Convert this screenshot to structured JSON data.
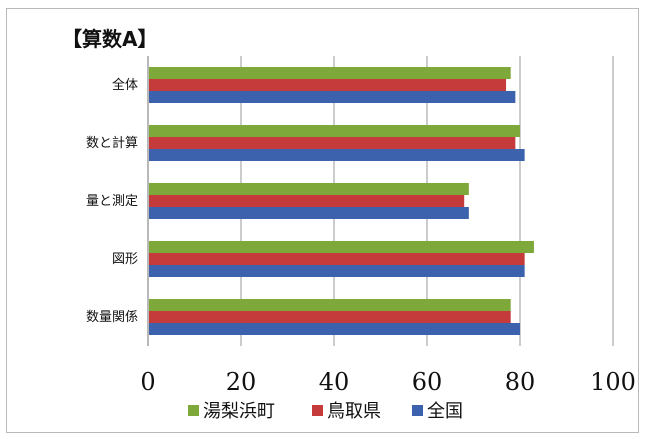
{
  "chart_data": {
    "type": "bar",
    "orientation": "horizontal",
    "title": "【算数A】",
    "categories": [
      "全体",
      "数と計算",
      "量と測定",
      "図形",
      "数量関係"
    ],
    "series": [
      {
        "name": "湯梨浜町",
        "color": "#7fa83a",
        "values": [
          78,
          80,
          69,
          83,
          78
        ]
      },
      {
        "name": "鳥取県",
        "color": "#c53a3a",
        "values": [
          77,
          79,
          68,
          81,
          78
        ]
      },
      {
        "name": "全国",
        "color": "#3c62ad",
        "values": [
          79,
          81,
          69,
          81,
          80
        ]
      }
    ],
    "xlim": [
      0,
      100
    ],
    "xticks": [
      "0",
      "20",
      "40",
      "60",
      "80",
      "100"
    ],
    "grid": "vertical",
    "legend_position": "bottom"
  }
}
